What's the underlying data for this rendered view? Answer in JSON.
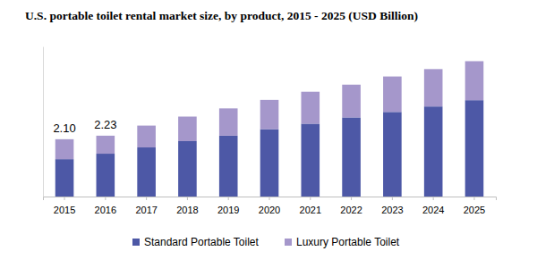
{
  "chart_data": {
    "type": "bar",
    "stacked": true,
    "title": "U.S. portable toilet rental market size, by product, 2015 - 2025 (USD Billion)",
    "categories": [
      "2015",
      "2016",
      "2017",
      "2018",
      "2019",
      "2020",
      "2021",
      "2022",
      "2023",
      "2024",
      "2025"
    ],
    "series": [
      {
        "name": "Standard Portable Toilet",
        "color": "#4d58a6",
        "values": [
          1.37,
          1.57,
          1.8,
          2.03,
          2.23,
          2.47,
          2.67,
          2.9,
          3.1,
          3.3,
          3.53
        ]
      },
      {
        "name": "Luxury Portable Toilet",
        "color": "#a597cb",
        "values": [
          0.73,
          0.66,
          0.8,
          0.9,
          1.0,
          1.07,
          1.17,
          1.2,
          1.3,
          1.37,
          1.43
        ]
      }
    ],
    "annotations": [
      {
        "x": "2015",
        "text": "2.10"
      },
      {
        "x": "2016",
        "text": "2.23"
      }
    ],
    "ylim": [
      0,
      5.5
    ],
    "tick_labels": "x",
    "grid": false,
    "legend": "bottom"
  }
}
